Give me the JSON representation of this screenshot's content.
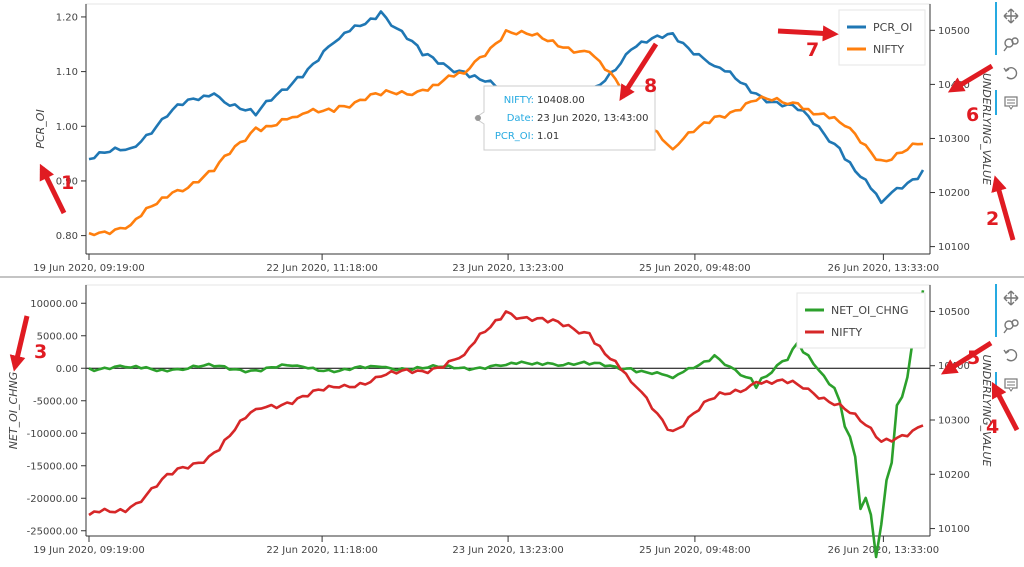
{
  "colors": {
    "pcr": "#1f77b4",
    "nifty": "#ff7f0e",
    "netoi": "#2ca02c",
    "nifty2": "#d62728",
    "toolbar": "#26aae1",
    "annotation": "#e01b22"
  },
  "toolbar_icons": [
    "pan-icon",
    "wheel-zoom-icon",
    "reset-icon",
    "hover-tooltip-icon"
  ],
  "tooltip": {
    "rows": [
      {
        "key": "NIFTY:",
        "value": "10408.00"
      },
      {
        "key": "Date:",
        "value": "23 Jun 2020, 13:43:00"
      },
      {
        "key": "PCR_OI:",
        "value": "1.01"
      }
    ]
  },
  "annotations": [
    "1",
    "2",
    "3",
    "4",
    "5",
    "6",
    "7",
    "8"
  ],
  "chart_data": [
    {
      "type": "line",
      "title": "",
      "xlabel": "",
      "ylabel": "PCR_OI",
      "y2label": "UNDERLYING_VALUE",
      "x_ticks": [
        "19 Jun 2020, 09:19:00",
        "22 Jun 2020, 11:18:00",
        "23 Jun 2020, 13:23:00",
        "25 Jun 2020, 09:48:00",
        "26 Jun 2020, 13:33:00"
      ],
      "ylim": [
        0.77,
        1.22
      ],
      "y_ticks": [
        "0.80",
        "0.90",
        "1.00",
        "1.10",
        "1.20"
      ],
      "y2lim": [
        10090,
        10545
      ],
      "y2_ticks": [
        "10100",
        "10200",
        "10300",
        "10400",
        "10500"
      ],
      "legend_position": "top-right",
      "x_index": [
        0,
        5,
        10,
        15,
        20,
        25,
        30,
        35,
        40,
        45,
        50,
        55,
        60,
        65,
        70,
        75,
        80,
        85,
        90,
        95,
        100
      ],
      "series": [
        {
          "name": "PCR_OI",
          "axis": "left",
          "values": [
            0.94,
            0.96,
            1.03,
            1.06,
            1.02,
            1.09,
            1.16,
            1.21,
            1.13,
            1.1,
            1.06,
            1.04,
            1.06,
            1.14,
            1.17,
            1.11,
            1.06,
            1.03,
            0.96,
            0.86,
            0.92
          ]
        },
        {
          "name": "NIFTY",
          "axis": "right",
          "values": [
            10125,
            10140,
            10200,
            10240,
            10320,
            10340,
            10360,
            10380,
            10390,
            10420,
            10500,
            10480,
            10460,
            10370,
            10280,
            10340,
            10370,
            10365,
            10330,
            10260,
            10290
          ]
        }
      ]
    },
    {
      "type": "line",
      "title": "",
      "xlabel": "",
      "ylabel": "NET_OI_CHNG",
      "y2label": "UNDERLYING_VALUE",
      "x_ticks": [
        "19 Jun 2020, 09:19:00",
        "22 Jun 2020, 11:18:00",
        "23 Jun 2020, 13:23:00",
        "25 Jun 2020, 09:48:00",
        "26 Jun 2020, 13:33:00"
      ],
      "ylim": [
        -25500,
        12500
      ],
      "y_ticks": [
        "-25000.00",
        "-20000.00",
        "-15000.00",
        "-10000.00",
        "-5000.00",
        "0.00",
        "5000.00",
        "10000.00"
      ],
      "y2lim": [
        10090,
        10545
      ],
      "y2_ticks": [
        "10100",
        "10200",
        "10300",
        "10400",
        "10500"
      ],
      "legend_position": "top-right",
      "x_index": [
        0,
        5,
        10,
        15,
        20,
        25,
        30,
        35,
        40,
        45,
        50,
        55,
        60,
        65,
        70,
        75,
        80,
        85,
        90,
        95,
        100
      ],
      "series": [
        {
          "name": "NET_OI_CHNG",
          "axis": "left",
          "values": [
            0,
            100,
            -200,
            300,
            -300,
            400,
            -400,
            200,
            0,
            100,
            500,
            800,
            600,
            0,
            -1500,
            2000,
            -3000,
            4000,
            -5000,
            -24000,
            12000
          ]
        },
        {
          "name": "NIFTY",
          "axis": "right",
          "values": [
            10125,
            10140,
            10200,
            10240,
            10320,
            10340,
            10360,
            10380,
            10390,
            10420,
            10500,
            10480,
            10460,
            10370,
            10280,
            10340,
            10370,
            10365,
            10330,
            10260,
            10290
          ]
        }
      ]
    }
  ]
}
